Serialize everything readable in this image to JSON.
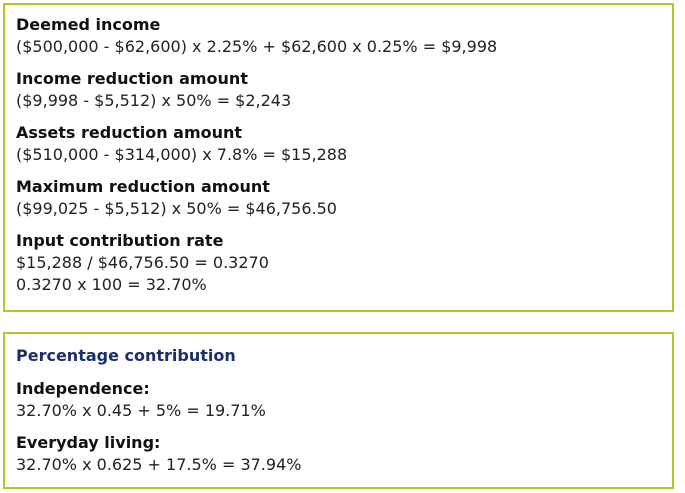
{
  "box1": {
    "groups": [
      {
        "heading": "Deemed income",
        "lines": [
          "($500,000 - $62,600) x 2.25% + $62,600 x 0.25% = $9,998"
        ]
      },
      {
        "heading": "Income reduction amount",
        "lines": [
          "($9,998 - $5,512) x 50% = $2,243"
        ]
      },
      {
        "heading": "Assets reduction amount",
        "lines": [
          "($510,000 - $314,000) x 7.8% = $15,288"
        ]
      },
      {
        "heading": "Maximum reduction amount",
        "lines": [
          "($99,025 - $5,512) x 50% = $46,756.50"
        ]
      },
      {
        "heading": "Input contribution rate",
        "lines": [
          "$15,288 / $46,756.50 = 0.3270",
          "0.3270 x 100 = 32.70%"
        ]
      }
    ]
  },
  "box2": {
    "title": "Percentage contribution",
    "groups": [
      {
        "heading": "Independence:",
        "lines": [
          "32.70% x 0.45 + 5% = 19.71%"
        ]
      },
      {
        "heading": "Everyday living:",
        "lines": [
          "32.70% x 0.625 + 17.5% = 37.94%"
        ]
      }
    ]
  },
  "colors": {
    "border": "#b7c52a",
    "section_title": "#1b2f6b",
    "text": "#111111"
  }
}
